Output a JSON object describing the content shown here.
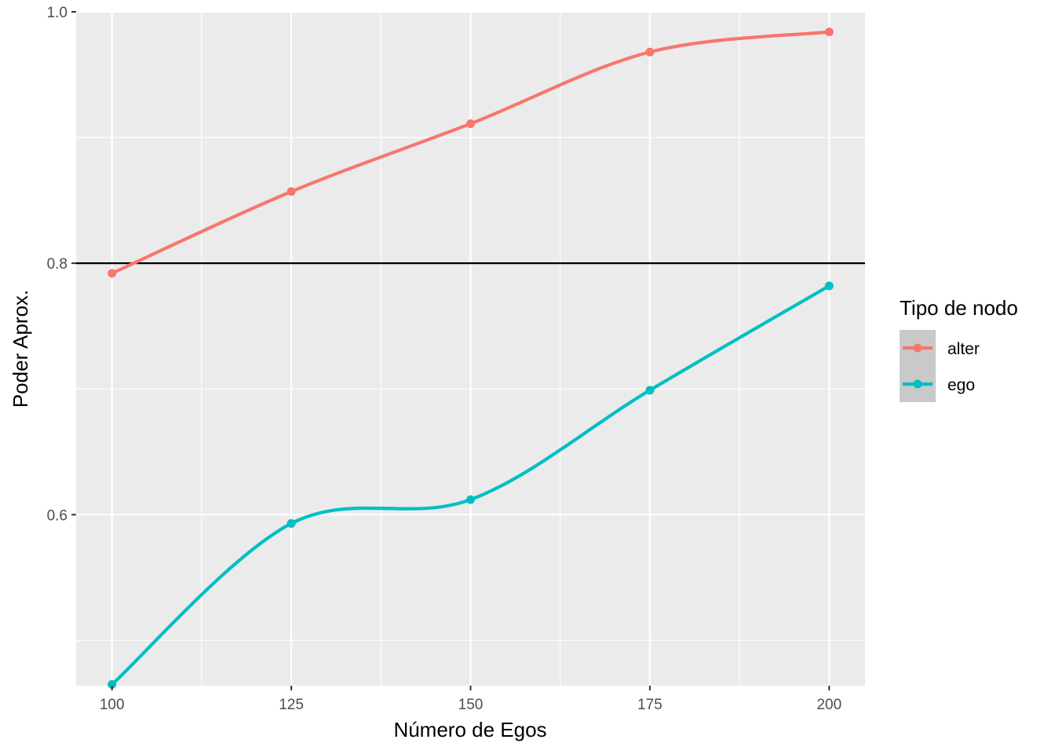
{
  "chart_data": {
    "type": "line",
    "xlabel": "Número de Egos",
    "ylabel": "Poder Aprox.",
    "x": [
      100,
      125,
      150,
      175,
      200
    ],
    "x_ticks": [
      100,
      125,
      150,
      175,
      200
    ],
    "x_tick_labels": [
      "100",
      "125",
      "150",
      "175",
      "200"
    ],
    "y_ticks": [
      0.6,
      0.8,
      1.0
    ],
    "y_tick_labels": [
      "0.6",
      "0.8",
      "1.0"
    ],
    "xlim": [
      95,
      205
    ],
    "ylim": [
      0.464,
      1.0
    ],
    "grid": true,
    "reference_line": {
      "y": 0.8,
      "color": "#000000"
    },
    "legend": {
      "title": "Tipo de nodo",
      "position": "right"
    },
    "series": [
      {
        "name": "alter",
        "color": "#F8766D",
        "values": [
          0.792,
          0.857,
          0.911,
          0.968,
          0.984
        ]
      },
      {
        "name": "ego",
        "color": "#00BFC4",
        "values": [
          0.465,
          0.593,
          0.612,
          0.699,
          0.782
        ]
      }
    ]
  }
}
